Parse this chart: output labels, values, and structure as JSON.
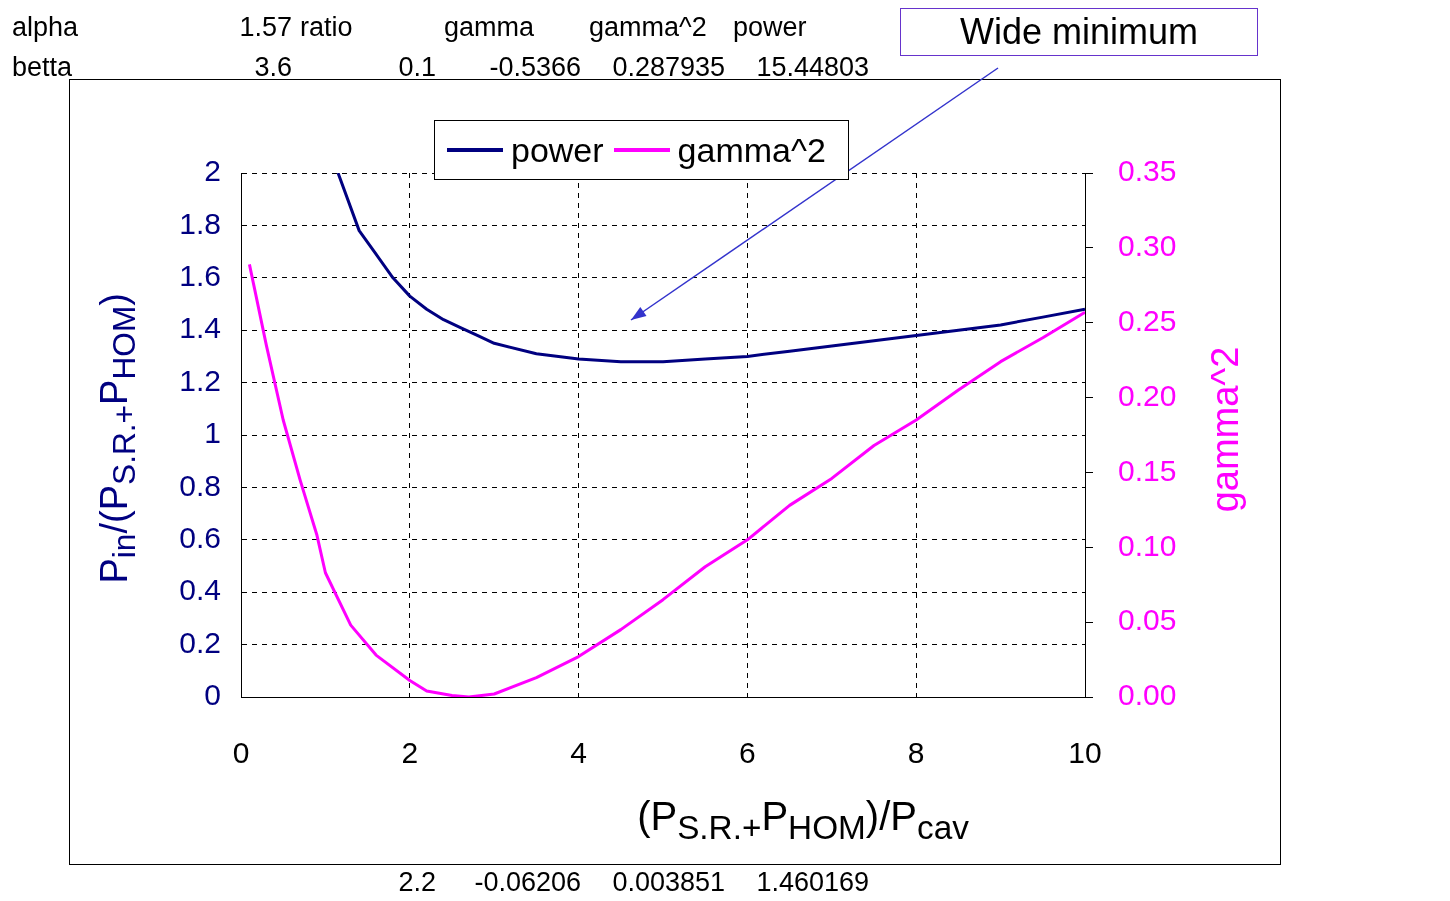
{
  "chart_data": {
    "type": "line",
    "xlabel": "(P$_{S.R.+}$P$_{HOM}$)/P$_{cav}$",
    "ylabel": "P$_{in}$/(P$_{S.R.+}$P$_{HOM}$)",
    "y2label": "gamma^2",
    "xlim": [
      0,
      10
    ],
    "xticks": [
      0,
      2,
      4,
      6,
      8,
      10
    ],
    "ylim": [
      0,
      2
    ],
    "yticks": [
      0,
      0.2,
      0.4,
      0.6,
      0.8,
      1,
      1.2,
      1.4,
      1.6,
      1.8,
      2
    ],
    "y2lim": [
      0,
      0.35
    ],
    "y2ticks": [
      {
        "value": 0,
        "label": "0.00"
      },
      {
        "value": 0.05,
        "label": "0.05"
      },
      {
        "value": 0.1,
        "label": "0.10"
      },
      {
        "value": 0.15,
        "label": "0.15"
      },
      {
        "value": 0.2,
        "label": "0.20"
      },
      {
        "value": 0.25,
        "label": "0.25"
      },
      {
        "value": 0.3,
        "label": "0.30"
      },
      {
        "value": 0.35,
        "label": "0.35"
      }
    ],
    "grid": true,
    "legend": "top",
    "marker": "none",
    "line_style": "solid",
    "series": [
      {
        "name": "power",
        "color": "#000080",
        "x": [
          1.15,
          1.4,
          1.6,
          1.8,
          2,
          2.2,
          2.4,
          2.6,
          2.8,
          3,
          3.5,
          4,
          4.5,
          5,
          5.5,
          6,
          6.5,
          7,
          7.5,
          8,
          8.5,
          9,
          9.5,
          10
        ],
        "values": [
          2,
          1.78,
          1.69,
          1.6,
          1.53,
          1.48,
          1.44,
          1.41,
          1.38,
          1.35,
          1.31,
          1.29,
          1.28,
          1.28,
          1.29,
          1.3,
          1.32,
          1.34,
          1.36,
          1.38,
          1.4,
          1.42,
          1.45,
          1.48
        ]
      },
      {
        "name": "gamma^2",
        "color": "#ff00ff",
        "axis": "y2",
        "x": [
          0.1,
          0.3,
          0.5,
          0.7,
          0.9,
          1,
          1.3,
          1.6,
          2,
          2.2,
          2.5,
          2.7,
          3,
          3.5,
          4,
          4.5,
          5,
          5.5,
          6,
          6.5,
          7,
          7.5,
          8,
          8.5,
          9,
          9.5,
          10
        ],
        "values": [
          0.289,
          0.235,
          0.185,
          0.145,
          0.108,
          0.083,
          0.048,
          0.028,
          0.011,
          0.004,
          0.001,
          0,
          0.002,
          0.013,
          0.027,
          0.045,
          0.065,
          0.087,
          0.105,
          0.128,
          0.146,
          0.168,
          0.185,
          0.205,
          0.224,
          0.24,
          0.257
        ]
      }
    ],
    "annotations": [
      "Wide minimum",
      "alpha",
      "1.57",
      "ratio",
      "gamma",
      "gamma^2",
      "power",
      "betta",
      "3.6",
      "0.1",
      "-0.5366",
      "0.287935",
      "15.44803",
      "2.2",
      "-0.06206",
      "0.003851",
      "1.460169"
    ]
  }
}
